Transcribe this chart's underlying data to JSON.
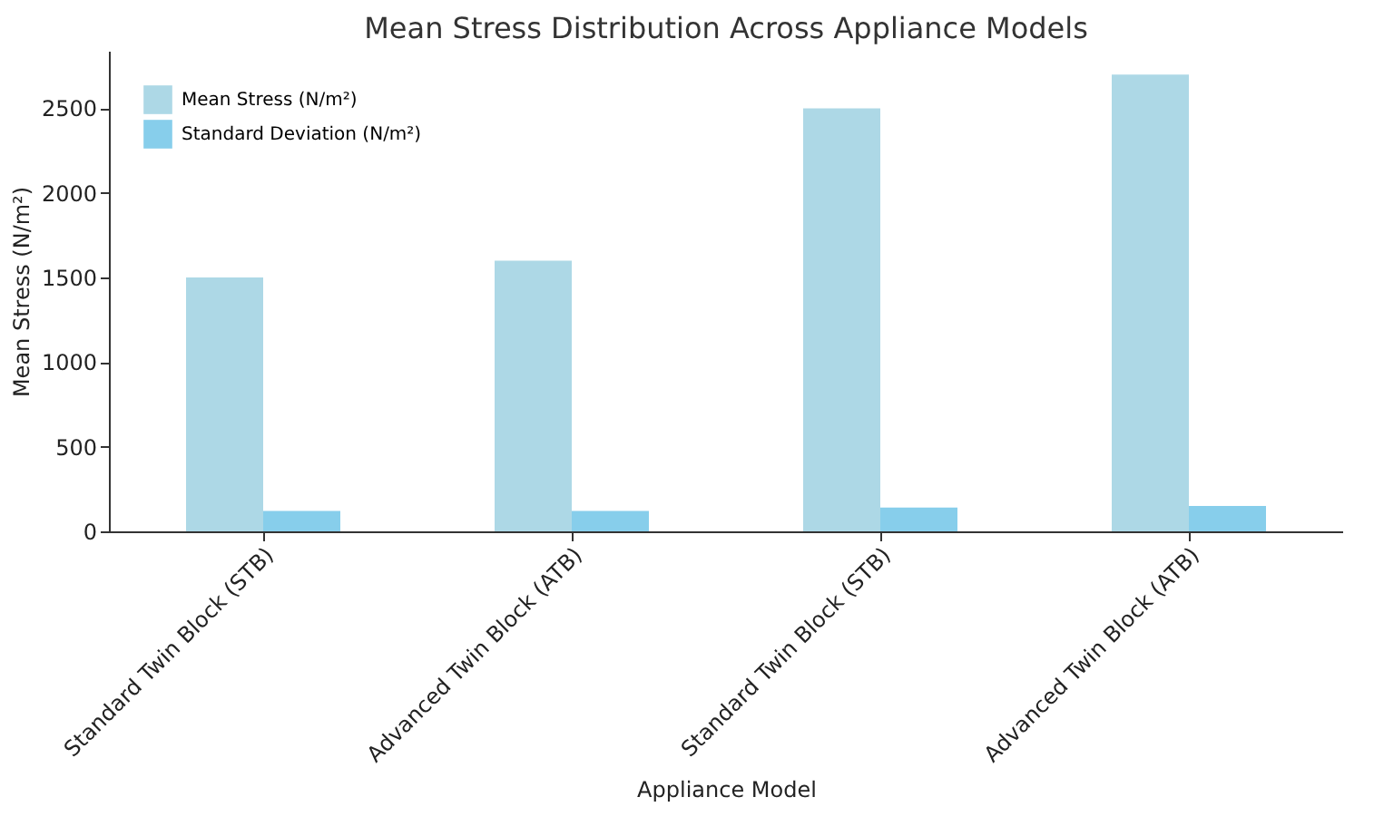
{
  "chart_data": {
    "type": "bar",
    "title": "Mean Stress Distribution Across Appliance Models",
    "xlabel": "Appliance Model",
    "ylabel": "Mean Stress (N/m²)",
    "categories": [
      "Standard Twin Block (STB)",
      "Advanced Twin Block (ATB)",
      "Standard Twin Block (STB)",
      "Advanced Twin Block (ATB)"
    ],
    "series": [
      {
        "name": "Mean Stress (N/m²)",
        "color": "#add8e6",
        "values": [
          1500,
          1600,
          2500,
          2700
        ]
      },
      {
        "name": "Standard Deviation (N/m²)",
        "color": "#87ceeb",
        "values": [
          120,
          120,
          140,
          150
        ]
      }
    ],
    "ylim": [
      0,
      2840
    ],
    "yticks": [
      0,
      500,
      1000,
      1500,
      2000,
      2500
    ],
    "grid": false,
    "legend": "top left"
  }
}
